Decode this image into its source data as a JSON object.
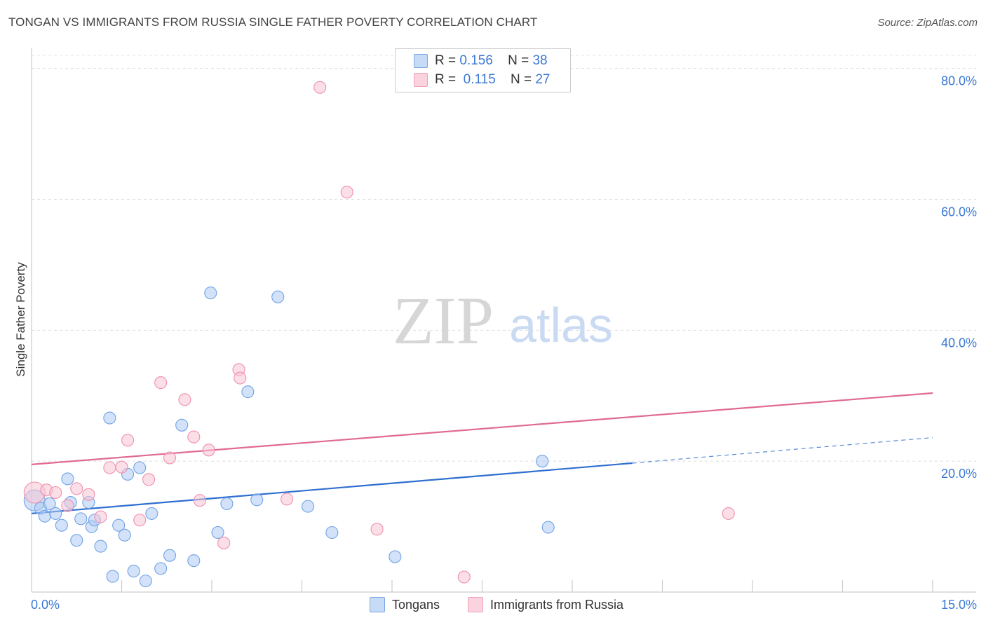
{
  "title": "TONGAN VS IMMIGRANTS FROM RUSSIA SINGLE FATHER POVERTY CORRELATION CHART",
  "source": "Source: ZipAtlas.com",
  "watermark": {
    "zip": "ZIP",
    "atlas": "atlas"
  },
  "legend_top": {
    "rows": [
      {
        "r_label": "R =",
        "r_value": "0.156",
        "n_label": "N =",
        "n_value": "38"
      },
      {
        "r_label": "R =",
        "r_value": "0.115",
        "n_label": "N =",
        "n_value": "27"
      }
    ]
  },
  "chart_data": {
    "type": "scatter",
    "title": "TONGAN VS IMMIGRANTS FROM RUSSIA SINGLE FATHER POVERTY CORRELATION CHART",
    "xlabel": "",
    "ylabel": "Single Father Poverty",
    "xlim": [
      0,
      15
    ],
    "ylim": [
      0,
      82
    ],
    "x_tick_labels": [
      {
        "value": 0,
        "label": "0.0%"
      },
      {
        "value": 15,
        "label": "15.0%"
      }
    ],
    "y_tick_labels": [
      {
        "value": 20,
        "label": "20.0%"
      },
      {
        "value": 40,
        "label": "40.0%"
      },
      {
        "value": 60,
        "label": "60.0%"
      },
      {
        "value": 80,
        "label": "80.0%"
      }
    ],
    "x_minor_ticks": [
      1.5,
      3.0,
      4.5,
      6.0,
      7.5,
      9.0,
      10.5,
      12.0,
      13.5,
      15.0
    ],
    "y_grid": [
      20,
      40,
      60,
      80
    ],
    "colors": {
      "tongans": "#6fa3e6",
      "russia": "#f08fae",
      "tongans_line": "#2f6fd0",
      "russia_line": "#e06a92",
      "tick": "#3b78d4"
    },
    "series": [
      {
        "name": "Tongans",
        "r": 0.156,
        "n": 38,
        "trend": {
          "x0": 0,
          "y0": 12.0,
          "x1": 10.0,
          "y1": 19.7,
          "dash_to_x": 15,
          "dash_to_y": 23.6
        },
        "points": [
          {
            "x": 0.05,
            "y": 14.0,
            "big": true
          },
          {
            "x": 0.15,
            "y": 12.8
          },
          {
            "x": 0.22,
            "y": 11.6
          },
          {
            "x": 0.3,
            "y": 13.5
          },
          {
            "x": 0.4,
            "y": 12.0
          },
          {
            "x": 0.5,
            "y": 10.2
          },
          {
            "x": 0.6,
            "y": 17.3
          },
          {
            "x": 0.65,
            "y": 13.7
          },
          {
            "x": 0.75,
            "y": 7.9
          },
          {
            "x": 0.82,
            "y": 11.2
          },
          {
            "x": 0.95,
            "y": 13.7
          },
          {
            "x": 1.0,
            "y": 10.0
          },
          {
            "x": 1.05,
            "y": 11.0
          },
          {
            "x": 1.15,
            "y": 7.0
          },
          {
            "x": 1.3,
            "y": 26.6
          },
          {
            "x": 1.35,
            "y": 2.4
          },
          {
            "x": 1.45,
            "y": 10.2
          },
          {
            "x": 1.55,
            "y": 8.7
          },
          {
            "x": 1.6,
            "y": 18.0
          },
          {
            "x": 1.7,
            "y": 3.2
          },
          {
            "x": 1.8,
            "y": 19.0
          },
          {
            "x": 1.9,
            "y": 1.7
          },
          {
            "x": 2.0,
            "y": 12.0
          },
          {
            "x": 2.15,
            "y": 3.6
          },
          {
            "x": 2.3,
            "y": 5.6
          },
          {
            "x": 2.5,
            "y": 25.5
          },
          {
            "x": 2.7,
            "y": 4.8
          },
          {
            "x": 2.98,
            "y": 45.7
          },
          {
            "x": 3.1,
            "y": 9.1
          },
          {
            "x": 3.25,
            "y": 13.5
          },
          {
            "x": 3.6,
            "y": 30.6
          },
          {
            "x": 3.75,
            "y": 14.1
          },
          {
            "x": 4.1,
            "y": 45.1
          },
          {
            "x": 4.6,
            "y": 13.1
          },
          {
            "x": 5.0,
            "y": 9.1
          },
          {
            "x": 6.05,
            "y": 5.4
          },
          {
            "x": 8.5,
            "y": 20.0
          },
          {
            "x": 8.6,
            "y": 9.9
          }
        ]
      },
      {
        "name": "Immigrants from Russia",
        "r": 0.115,
        "n": 27,
        "trend": {
          "x0": 0,
          "y0": 19.5,
          "x1": 15,
          "y1": 30.4
        },
        "points": [
          {
            "x": 0.05,
            "y": 15.2,
            "big": true
          },
          {
            "x": 0.25,
            "y": 15.6
          },
          {
            "x": 0.4,
            "y": 15.2
          },
          {
            "x": 0.6,
            "y": 13.2
          },
          {
            "x": 0.75,
            "y": 15.8
          },
          {
            "x": 0.95,
            "y": 14.9
          },
          {
            "x": 1.15,
            "y": 11.5
          },
          {
            "x": 1.3,
            "y": 19.0
          },
          {
            "x": 1.5,
            "y": 19.1
          },
          {
            "x": 1.6,
            "y": 23.2
          },
          {
            "x": 1.8,
            "y": 11.0
          },
          {
            "x": 1.95,
            "y": 17.2
          },
          {
            "x": 2.15,
            "y": 32.0
          },
          {
            "x": 2.3,
            "y": 20.5
          },
          {
            "x": 2.55,
            "y": 29.4
          },
          {
            "x": 2.7,
            "y": 23.7
          },
          {
            "x": 2.8,
            "y": 14.0
          },
          {
            "x": 2.95,
            "y": 21.7
          },
          {
            "x": 3.2,
            "y": 7.5
          },
          {
            "x": 3.45,
            "y": 34.0
          },
          {
            "x": 3.47,
            "y": 32.7
          },
          {
            "x": 4.25,
            "y": 14.2
          },
          {
            "x": 4.8,
            "y": 77.1
          },
          {
            "x": 5.25,
            "y": 61.1
          },
          {
            "x": 5.75,
            "y": 9.6
          },
          {
            "x": 7.2,
            "y": 2.3
          },
          {
            "x": 11.6,
            "y": 12.0
          }
        ]
      }
    ]
  },
  "legend_bottom": [
    {
      "label": "Tongans"
    },
    {
      "label": "Immigrants from Russia"
    }
  ]
}
